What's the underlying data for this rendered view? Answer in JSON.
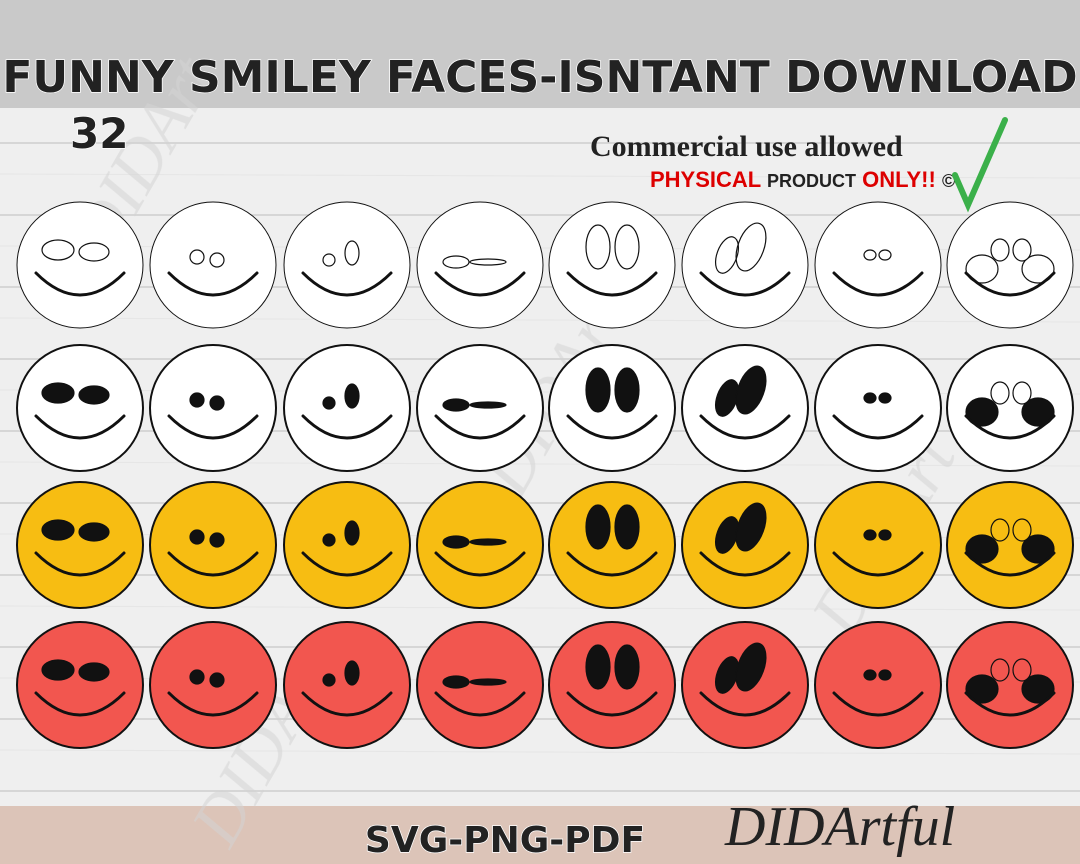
{
  "header": {
    "title": "FUNNY SMILEY FACES-ISNTANT DOWNLOAD",
    "count": "32"
  },
  "license": {
    "line1": "Commercial use allowed",
    "physical": "PHYSICAL",
    "product": "PRODUCT",
    "only": "ONLY!!",
    "copyright": "©"
  },
  "footer": {
    "formats": "SVG-PNG-PDF",
    "brand": "DIDArtful"
  },
  "watermark": "DIDArt"
}
